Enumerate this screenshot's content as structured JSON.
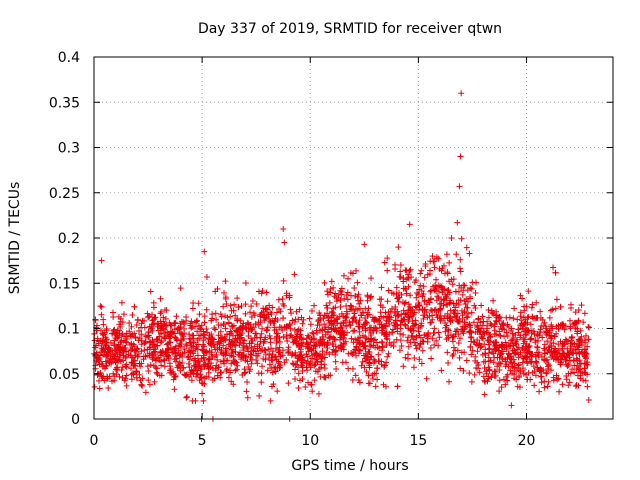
{
  "chart_data": {
    "type": "scatter",
    "title": "Day 337 of 2019, SRMTID for receiver qtwn",
    "xlabel": "GPS time / hours",
    "ylabel": "SRMTID / TECUs",
    "xlim": [
      0,
      24
    ],
    "ylim": [
      0,
      0.4
    ],
    "xticks": [
      0,
      5,
      10,
      15,
      20
    ],
    "xtick_labels": [
      "0",
      "5",
      "10",
      "15",
      "20"
    ],
    "yticks": [
      0,
      0.05,
      0.1,
      0.15,
      0.2,
      0.25,
      0.3,
      0.35,
      0.4
    ],
    "ytick_labels": [
      "0",
      "0.05",
      "0.1",
      "0.15",
      "0.2",
      "0.25",
      "0.3",
      "0.35",
      "0.4"
    ],
    "grid": true,
    "marker": "plus",
    "color": "#e8000b",
    "series": [
      {
        "name": "SRMTID",
        "x_range": [
          0,
          22.9
        ],
        "sample_count": 2800,
        "band_profile": {
          "x": [
            0,
            1,
            2,
            3,
            4,
            5,
            6,
            7,
            8,
            9,
            10,
            11,
            12,
            13,
            14,
            15,
            16,
            17,
            18,
            19,
            20,
            21,
            22,
            22.9
          ],
          "center": [
            0.075,
            0.075,
            0.075,
            0.085,
            0.08,
            0.07,
            0.09,
            0.085,
            0.09,
            0.09,
            0.07,
            0.1,
            0.1,
            0.08,
            0.12,
            0.115,
            0.12,
            0.115,
            0.085,
            0.07,
            0.085,
            0.08,
            0.075,
            0.07
          ],
          "spread": [
            0.035,
            0.035,
            0.035,
            0.035,
            0.035,
            0.04,
            0.04,
            0.04,
            0.045,
            0.04,
            0.035,
            0.045,
            0.045,
            0.04,
            0.05,
            0.05,
            0.055,
            0.05,
            0.04,
            0.04,
            0.04,
            0.04,
            0.04,
            0.035
          ]
        },
        "notable_points": [
          {
            "x": 0.35,
            "y": 0.175
          },
          {
            "x": 5.1,
            "y": 0.185
          },
          {
            "x": 8.75,
            "y": 0.21
          },
          {
            "x": 8.8,
            "y": 0.195
          },
          {
            "x": 14.6,
            "y": 0.215
          },
          {
            "x": 16.8,
            "y": 0.217
          },
          {
            "x": 16.9,
            "y": 0.257
          },
          {
            "x": 16.95,
            "y": 0.29
          },
          {
            "x": 16.98,
            "y": 0.36
          },
          {
            "x": 12.5,
            "y": 0.193
          },
          {
            "x": 4.55,
            "y": 0.02
          },
          {
            "x": 19.3,
            "y": 0.015
          },
          {
            "x": 4.97,
            "y": 0.0
          },
          {
            "x": 5.5,
            "y": 0.0
          },
          {
            "x": 9.05,
            "y": 0.0
          }
        ]
      }
    ]
  }
}
